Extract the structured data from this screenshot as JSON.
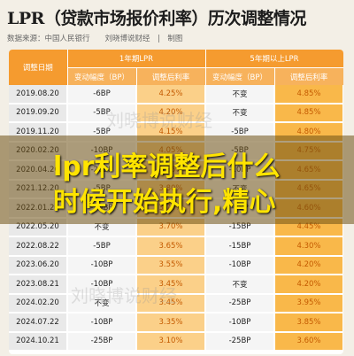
{
  "title": "LPR（贷款市场报价利率）历次调整情况",
  "source": "数据来源：中国人民银行　　刘晓博说财经　|　制图",
  "headers": {
    "date": "调整日期",
    "lpr1": "1年期LPR",
    "lpr5": "5年期以上LPR",
    "change": "变动幅度（BP）",
    "rate": "调整后利率"
  },
  "rows": [
    {
      "date": "2019.08.20",
      "c1": "-6BP",
      "r1": "4.25%",
      "c5": "不变",
      "r5": "4.85%"
    },
    {
      "date": "2019.09.20",
      "c1": "-5BP",
      "r1": "4.20%",
      "c5": "不变",
      "r5": "4.85%"
    },
    {
      "date": "2019.11.20",
      "c1": "-5BP",
      "r1": "4.15%",
      "c5": "-5BP",
      "r5": "4.80%"
    },
    {
      "date": "2020.02.20",
      "c1": "-10BP",
      "r1": "4.05%",
      "c5": "-5BP",
      "r5": "4.75%"
    },
    {
      "date": "2020.04.20",
      "c1": "-20BP",
      "r1": "3.85%",
      "c5": "-10BP",
      "r5": "4.65%"
    },
    {
      "date": "2021.12.20",
      "c1": "-5BP",
      "r1": "3.80%",
      "c5": "不变",
      "r5": "4.65%"
    },
    {
      "date": "2022.01.20",
      "c1": "-10BP",
      "r1": "3.70%",
      "c5": "-5BP",
      "r5": "4.60%"
    },
    {
      "date": "2022.05.20",
      "c1": "不变",
      "r1": "3.70%",
      "c5": "-15BP",
      "r5": "4.45%"
    },
    {
      "date": "2022.08.22",
      "c1": "-5BP",
      "r1": "3.65%",
      "c5": "-15BP",
      "r5": "4.30%"
    },
    {
      "date": "2023.06.20",
      "c1": "-10BP",
      "r1": "3.55%",
      "c5": "-10BP",
      "r5": "4.20%"
    },
    {
      "date": "2023.08.21",
      "c1": "-10BP",
      "r1": "3.45%",
      "c5": "不变",
      "r5": "4.20%"
    },
    {
      "date": "2024.02.20",
      "c1": "不变",
      "r1": "3.45%",
      "c5": "-25BP",
      "r5": "3.95%"
    },
    {
      "date": "2024.07.22",
      "c1": "-10BP",
      "r1": "3.35%",
      "c5": "-10BP",
      "r5": "3.85%"
    },
    {
      "date": "2024.10.21",
      "c1": "-25BP",
      "r1": "3.10%",
      "c5": "-25BP",
      "r5": "3.60%"
    }
  ],
  "overlay": {
    "line1": "lpr利率调整后什么",
    "line2": "时候开始执行,精心"
  },
  "watermark": "刘晓博说财经"
}
